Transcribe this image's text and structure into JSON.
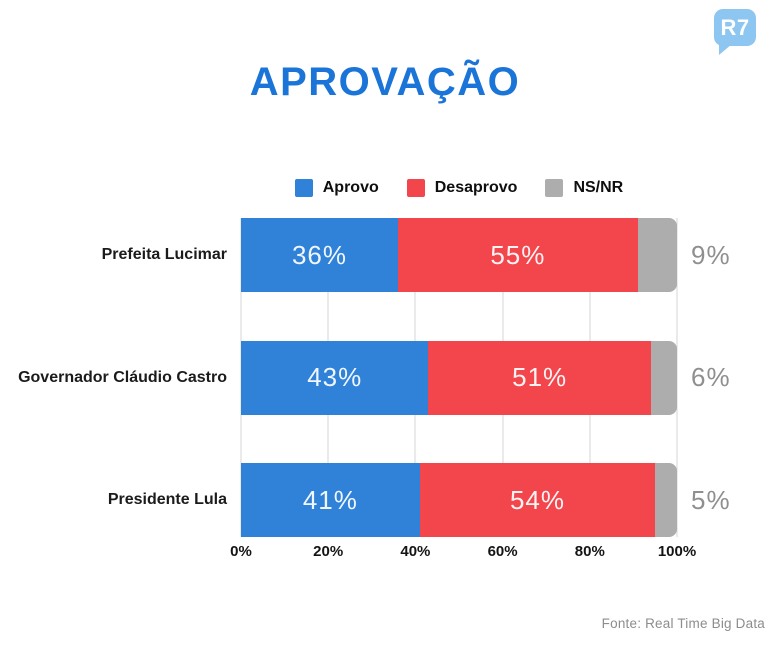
{
  "logo": {
    "text": "R7",
    "bg_color": "#8EC6F2"
  },
  "title": "APROVAÇÃO",
  "title_color": "#1B74D8",
  "legend": [
    {
      "label": "Aprovo",
      "color": "#3081D8"
    },
    {
      "label": "Desaprovo",
      "color": "#F2454C"
    },
    {
      "label": "NS/NR",
      "color": "#ADADAD"
    }
  ],
  "chart_data": {
    "type": "bar",
    "orientation": "horizontal",
    "stacked": true,
    "title": "APROVAÇÃO",
    "categories": [
      "Prefeita Lucimar",
      "Governador Cláudio Castro",
      "Presidente Lula"
    ],
    "series": [
      {
        "name": "Aprovo",
        "values": [
          36,
          43,
          41
        ],
        "color": "#3081D8",
        "label_inside": true
      },
      {
        "name": "Desaprovo",
        "values": [
          55,
          51,
          54
        ],
        "color": "#F2454C",
        "label_inside": true
      },
      {
        "name": "NS/NR",
        "values": [
          9,
          6,
          5
        ],
        "color": "#ADADAD",
        "label_inside": false
      }
    ],
    "value_suffix": "%",
    "xlim": [
      0,
      100
    ],
    "x_ticks": [
      "0%",
      "20%",
      "40%",
      "60%",
      "80%",
      "100%"
    ],
    "grid": true,
    "grid_color": "#d6d6d6",
    "outside_label_color": "#8f8f8f",
    "legend_position": "top"
  },
  "footer": {
    "source": "Fonte: Real Time Big Data"
  }
}
